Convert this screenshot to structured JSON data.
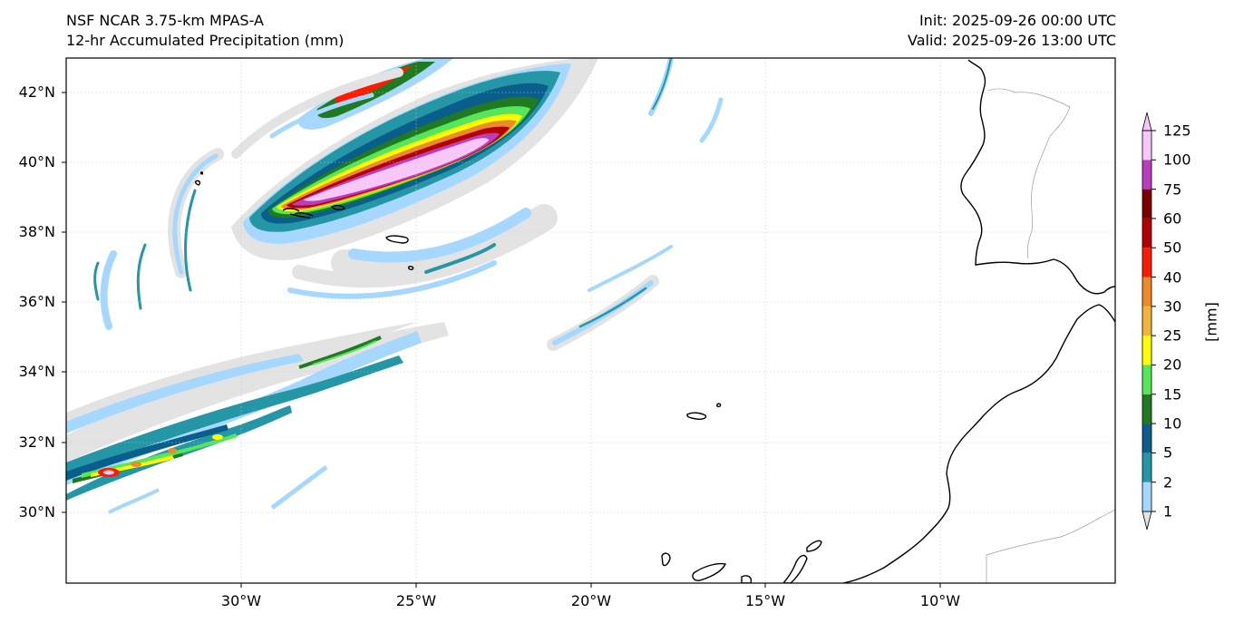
{
  "header": {
    "model_title": "NSF NCAR 3.75-km MPAS-A",
    "field_title": "12-hr Accumulated Precipitation (mm)",
    "init_label": "Init: 2025-09-26 00:00 UTC",
    "valid_label": "Valid: 2025-09-26 13:00 UTC"
  },
  "axes": {
    "lat_labels": [
      "42°N",
      "40°N",
      "38°N",
      "36°N",
      "34°N",
      "32°N",
      "30°N"
    ],
    "lon_labels": [
      "30°W",
      "25°W",
      "20°W",
      "15°W",
      "10°W"
    ]
  },
  "colorbar": {
    "unit_label": "[mm]",
    "levels": [
      "1",
      "2",
      "5",
      "10",
      "15",
      "20",
      "25",
      "30",
      "40",
      "50",
      "60",
      "75",
      "100",
      "125"
    ],
    "colors": [
      "#e3e3e3",
      "#a6d8ff",
      "#2596a6",
      "#0a5e8c",
      "#1f7a22",
      "#55e65a",
      "#ffff00",
      "#f2b33d",
      "#ee8a2a",
      "#ff1a00",
      "#b30000",
      "#7a0000",
      "#b93dbf",
      "#f7c7f7"
    ]
  },
  "map": {
    "grid": true,
    "extent": "Central North Atlantic to Iberia and NW Africa",
    "features": [
      "Azores",
      "Madeira",
      "Canary Islands",
      "Portugal",
      "Spain",
      "Morocco"
    ]
  }
}
